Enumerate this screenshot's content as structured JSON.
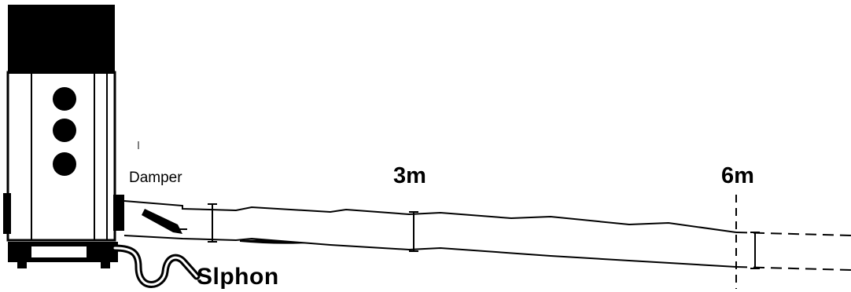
{
  "labels": {
    "damper": "Damper",
    "distance_3m": "3m",
    "distance_6m": "6m",
    "siphon": "Slphon"
  },
  "colors": {
    "ink": "#000000",
    "background": "#ffffff"
  }
}
